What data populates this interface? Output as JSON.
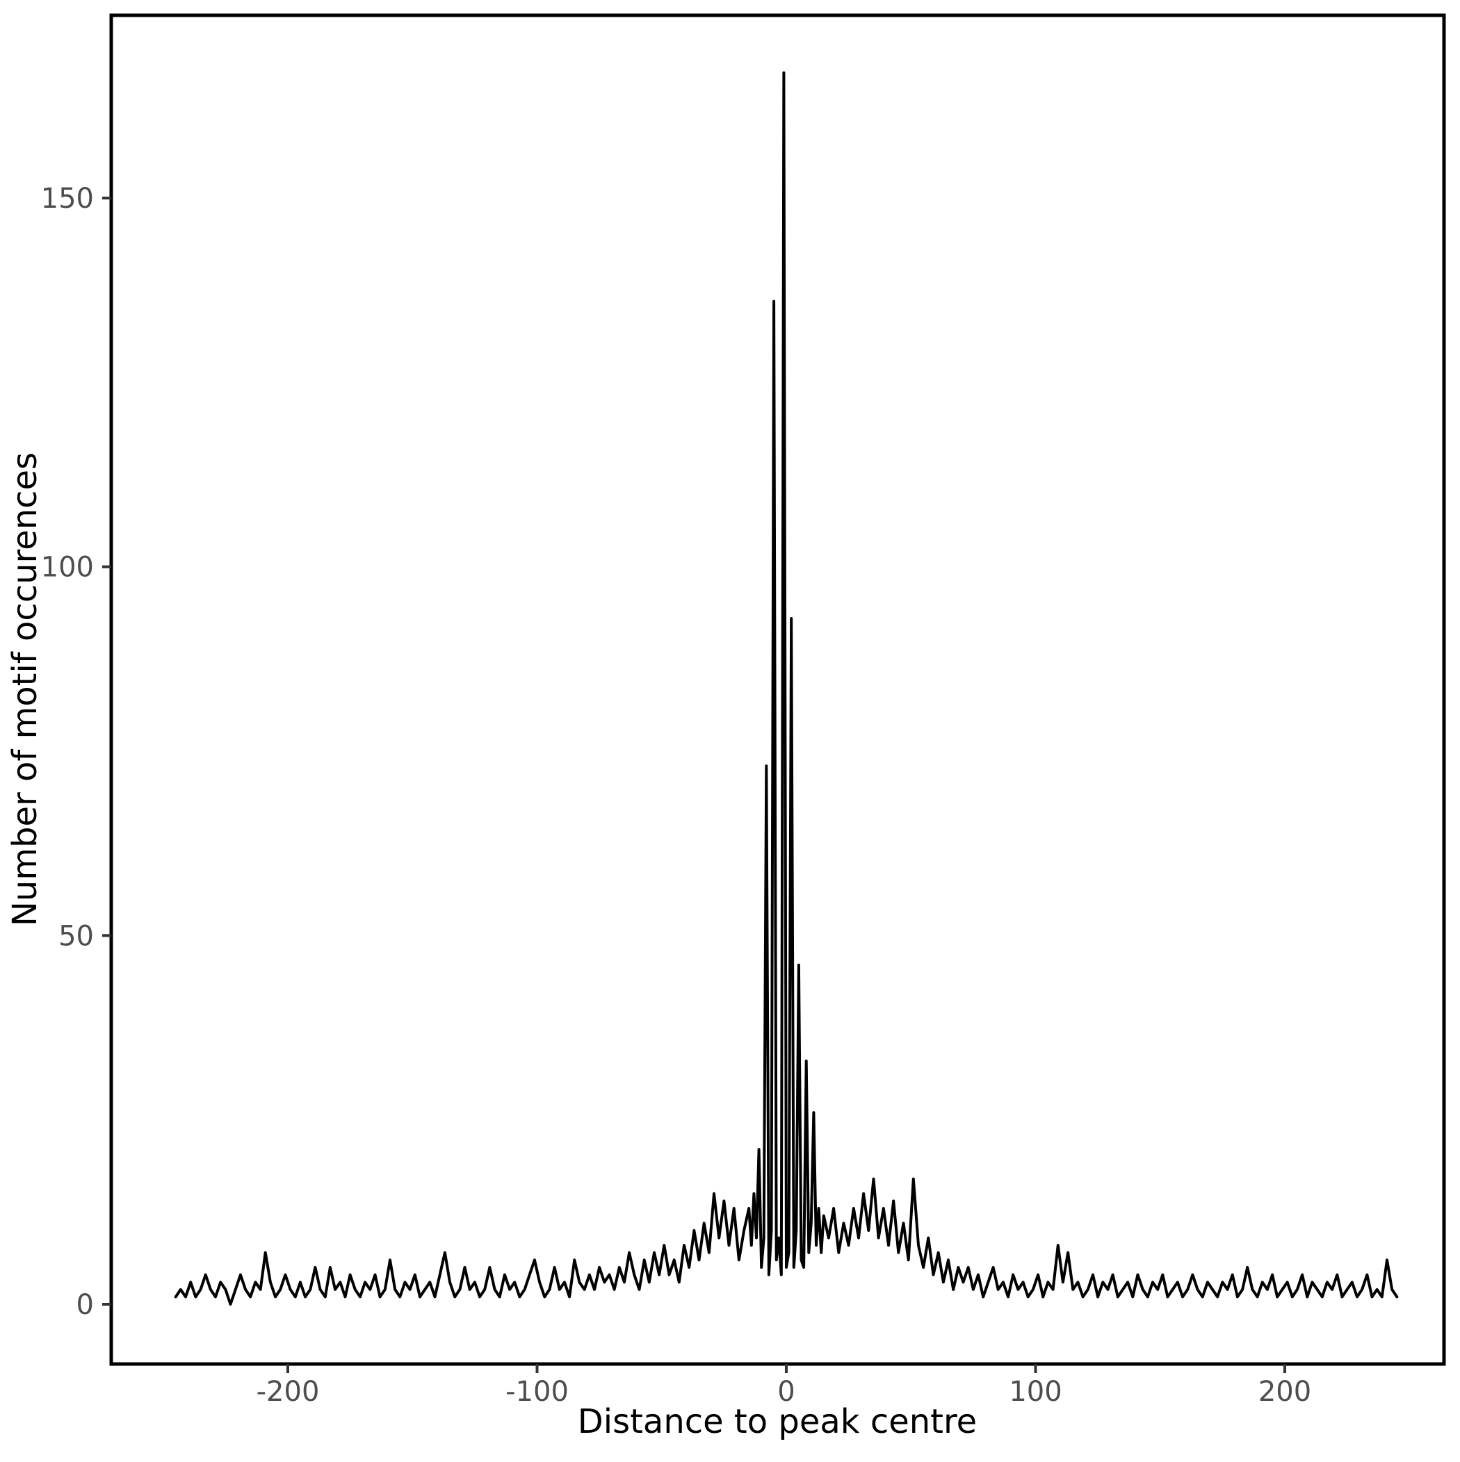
{
  "figure": {
    "title": "",
    "background_color": "#FFFFFF",
    "panel_border_color": "#000000",
    "line_color": "#000000",
    "tick_label_color": "#4D4D4D",
    "axis_title_color": "#000000"
  },
  "chart_data": {
    "type": "line",
    "title": "",
    "xlabel": "Distance to peak centre",
    "ylabel": "Number of motif occurences",
    "x_ticks": [
      -200,
      -100,
      0,
      100,
      200
    ],
    "y_ticks": [
      0,
      50,
      100,
      150
    ],
    "xlim": [
      -271,
      264
    ],
    "ylim": [
      -8,
      175
    ],
    "grid": false,
    "legend": "none",
    "peak_max_value": 167,
    "peak_max_x": -1,
    "points": [
      [
        -245,
        1
      ],
      [
        -243,
        2
      ],
      [
        -241,
        1
      ],
      [
        -239,
        3
      ],
      [
        -237,
        1
      ],
      [
        -235,
        2
      ],
      [
        -233,
        4
      ],
      [
        -231,
        2
      ],
      [
        -229,
        1
      ],
      [
        -227,
        3
      ],
      [
        -225,
        2
      ],
      [
        -223,
        0
      ],
      [
        -221,
        2
      ],
      [
        -219,
        4
      ],
      [
        -217,
        2
      ],
      [
        -215,
        1
      ],
      [
        -213,
        3
      ],
      [
        -211,
        2
      ],
      [
        -209,
        7
      ],
      [
        -207,
        3
      ],
      [
        -205,
        1
      ],
      [
        -203,
        2
      ],
      [
        -201,
        4
      ],
      [
        -199,
        2
      ],
      [
        -197,
        1
      ],
      [
        -195,
        3
      ],
      [
        -193,
        1
      ],
      [
        -191,
        2
      ],
      [
        -189,
        5
      ],
      [
        -187,
        2
      ],
      [
        -185,
        1
      ],
      [
        -183,
        5
      ],
      [
        -181,
        2
      ],
      [
        -179,
        3
      ],
      [
        -177,
        1
      ],
      [
        -175,
        4
      ],
      [
        -173,
        2
      ],
      [
        -171,
        1
      ],
      [
        -169,
        3
      ],
      [
        -167,
        2
      ],
      [
        -165,
        4
      ],
      [
        -163,
        1
      ],
      [
        -161,
        2
      ],
      [
        -159,
        6
      ],
      [
        -157,
        2
      ],
      [
        -155,
        1
      ],
      [
        -153,
        3
      ],
      [
        -151,
        2
      ],
      [
        -149,
        4
      ],
      [
        -147,
        1
      ],
      [
        -145,
        2
      ],
      [
        -143,
        3
      ],
      [
        -141,
        1
      ],
      [
        -139,
        4
      ],
      [
        -137,
        7
      ],
      [
        -135,
        3
      ],
      [
        -133,
        1
      ],
      [
        -131,
        2
      ],
      [
        -129,
        5
      ],
      [
        -127,
        2
      ],
      [
        -125,
        3
      ],
      [
        -123,
        1
      ],
      [
        -121,
        2
      ],
      [
        -119,
        5
      ],
      [
        -117,
        2
      ],
      [
        -115,
        1
      ],
      [
        -113,
        4
      ],
      [
        -111,
        2
      ],
      [
        -109,
        3
      ],
      [
        -107,
        1
      ],
      [
        -105,
        2
      ],
      [
        -103,
        4
      ],
      [
        -101,
        6
      ],
      [
        -99,
        3
      ],
      [
        -97,
        1
      ],
      [
        -95,
        2
      ],
      [
        -93,
        5
      ],
      [
        -91,
        2
      ],
      [
        -89,
        3
      ],
      [
        -87,
        1
      ],
      [
        -85,
        6
      ],
      [
        -83,
        3
      ],
      [
        -81,
        2
      ],
      [
        -79,
        4
      ],
      [
        -77,
        2
      ],
      [
        -75,
        5
      ],
      [
        -73,
        3
      ],
      [
        -71,
        4
      ],
      [
        -69,
        2
      ],
      [
        -67,
        5
      ],
      [
        -65,
        3
      ],
      [
        -63,
        7
      ],
      [
        -61,
        4
      ],
      [
        -59,
        2
      ],
      [
        -57,
        6
      ],
      [
        -55,
        3
      ],
      [
        -53,
        7
      ],
      [
        -51,
        4
      ],
      [
        -49,
        8
      ],
      [
        -47,
        4
      ],
      [
        -45,
        6
      ],
      [
        -43,
        3
      ],
      [
        -41,
        8
      ],
      [
        -39,
        5
      ],
      [
        -37,
        10
      ],
      [
        -35,
        6
      ],
      [
        -33,
        11
      ],
      [
        -31,
        7
      ],
      [
        -29,
        15
      ],
      [
        -27,
        9
      ],
      [
        -25,
        14
      ],
      [
        -23,
        8
      ],
      [
        -21,
        13
      ],
      [
        -19,
        6
      ],
      [
        -17,
        10
      ],
      [
        -15,
        13
      ],
      [
        -14,
        8
      ],
      [
        -13,
        15
      ],
      [
        -12,
        9
      ],
      [
        -11,
        21
      ],
      [
        -10,
        5
      ],
      [
        -9,
        9
      ],
      [
        -8,
        73
      ],
      [
        -7,
        4
      ],
      [
        -6,
        10
      ],
      [
        -5,
        136
      ],
      [
        -4,
        6
      ],
      [
        -3,
        9
      ],
      [
        -2,
        4
      ],
      [
        -1,
        167
      ],
      [
        0,
        5
      ],
      [
        1,
        7
      ],
      [
        2,
        93
      ],
      [
        3,
        5
      ],
      [
        4,
        10
      ],
      [
        5,
        46
      ],
      [
        6,
        6
      ],
      [
        7,
        5
      ],
      [
        8,
        33
      ],
      [
        9,
        7
      ],
      [
        10,
        11
      ],
      [
        11,
        26
      ],
      [
        12,
        8
      ],
      [
        13,
        13
      ],
      [
        14,
        7
      ],
      [
        15,
        12
      ],
      [
        17,
        9
      ],
      [
        19,
        13
      ],
      [
        21,
        7
      ],
      [
        23,
        11
      ],
      [
        25,
        8
      ],
      [
        27,
        13
      ],
      [
        29,
        9
      ],
      [
        31,
        15
      ],
      [
        33,
        10
      ],
      [
        35,
        17
      ],
      [
        37,
        9
      ],
      [
        39,
        13
      ],
      [
        41,
        8
      ],
      [
        43,
        14
      ],
      [
        45,
        7
      ],
      [
        47,
        11
      ],
      [
        49,
        6
      ],
      [
        51,
        17
      ],
      [
        53,
        8
      ],
      [
        55,
        5
      ],
      [
        57,
        9
      ],
      [
        59,
        4
      ],
      [
        61,
        7
      ],
      [
        63,
        3
      ],
      [
        65,
        6
      ],
      [
        67,
        2
      ],
      [
        69,
        5
      ],
      [
        71,
        3
      ],
      [
        73,
        5
      ],
      [
        75,
        2
      ],
      [
        77,
        4
      ],
      [
        79,
        1
      ],
      [
        81,
        3
      ],
      [
        83,
        5
      ],
      [
        85,
        2
      ],
      [
        87,
        3
      ],
      [
        89,
        1
      ],
      [
        91,
        4
      ],
      [
        93,
        2
      ],
      [
        95,
        3
      ],
      [
        97,
        1
      ],
      [
        99,
        2
      ],
      [
        101,
        4
      ],
      [
        103,
        1
      ],
      [
        105,
        3
      ],
      [
        107,
        2
      ],
      [
        109,
        8
      ],
      [
        111,
        3
      ],
      [
        113,
        7
      ],
      [
        115,
        2
      ],
      [
        117,
        3
      ],
      [
        119,
        1
      ],
      [
        121,
        2
      ],
      [
        123,
        4
      ],
      [
        125,
        1
      ],
      [
        127,
        3
      ],
      [
        129,
        2
      ],
      [
        131,
        4
      ],
      [
        133,
        1
      ],
      [
        135,
        2
      ],
      [
        137,
        3
      ],
      [
        139,
        1
      ],
      [
        141,
        4
      ],
      [
        143,
        2
      ],
      [
        145,
        1
      ],
      [
        147,
        3
      ],
      [
        149,
        2
      ],
      [
        151,
        4
      ],
      [
        153,
        1
      ],
      [
        155,
        2
      ],
      [
        157,
        3
      ],
      [
        159,
        1
      ],
      [
        161,
        2
      ],
      [
        163,
        4
      ],
      [
        165,
        2
      ],
      [
        167,
        1
      ],
      [
        169,
        3
      ],
      [
        171,
        2
      ],
      [
        173,
        1
      ],
      [
        175,
        3
      ],
      [
        177,
        2
      ],
      [
        179,
        4
      ],
      [
        181,
        1
      ],
      [
        183,
        2
      ],
      [
        185,
        5
      ],
      [
        187,
        2
      ],
      [
        189,
        1
      ],
      [
        191,
        3
      ],
      [
        193,
        2
      ],
      [
        195,
        4
      ],
      [
        197,
        1
      ],
      [
        199,
        2
      ],
      [
        201,
        3
      ],
      [
        203,
        1
      ],
      [
        205,
        2
      ],
      [
        207,
        4
      ],
      [
        209,
        1
      ],
      [
        211,
        3
      ],
      [
        213,
        2
      ],
      [
        215,
        1
      ],
      [
        217,
        3
      ],
      [
        219,
        2
      ],
      [
        221,
        4
      ],
      [
        223,
        1
      ],
      [
        225,
        2
      ],
      [
        227,
        3
      ],
      [
        229,
        1
      ],
      [
        231,
        2
      ],
      [
        233,
        4
      ],
      [
        235,
        1
      ],
      [
        237,
        2
      ],
      [
        239,
        1
      ],
      [
        241,
        6
      ],
      [
        243,
        2
      ],
      [
        245,
        1
      ]
    ]
  }
}
